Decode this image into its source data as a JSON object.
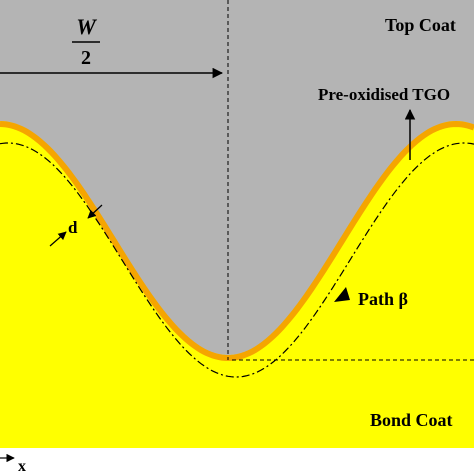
{
  "labels": {
    "top_coat": "Top Coat",
    "tgo": "Pre-oxidised TGO",
    "w_numerator": "W",
    "w_denominator": "2",
    "d": "d",
    "path": "Path β",
    "bond_coat": "Bond Coat",
    "x_axis": "x"
  }
}
